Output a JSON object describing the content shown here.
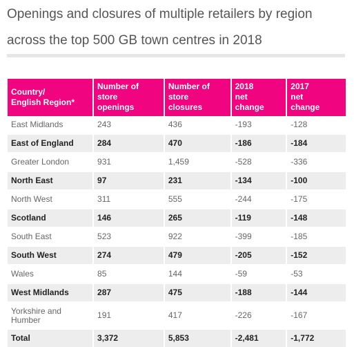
{
  "chart_data": {
    "type": "table",
    "title": "Openings and closures of multiple retailers by region across the top 500 GB town centres in 2018",
    "headers": [
      "Country/\n English Region*",
      "Number of\nstore\n openings",
      "Number of\n store\nclosures",
      "2018\n net\nchange",
      "2017\n net\nchange"
    ],
    "rows": [
      [
        "East Midlands",
        "243",
        "436",
        "-193",
        "-128"
      ],
      [
        "East of England",
        "284",
        "470",
        "-186",
        "-184"
      ],
      [
        "Greater London",
        "931",
        "1,459",
        "-528",
        "-336"
      ],
      [
        "North East",
        "97",
        "231",
        "-134",
        "-100"
      ],
      [
        "North West",
        "311",
        "555",
        "-244",
        "-175"
      ],
      [
        "Scotland",
        "146",
        "265",
        "-119",
        "-148"
      ],
      [
        "South East",
        "523",
        "922",
        "-399",
        "-185"
      ],
      [
        "South West",
        "274",
        "479",
        "-205",
        "-152"
      ],
      [
        "Wales",
        "85",
        "144",
        "-59",
        "-53"
      ],
      [
        "West Midlands",
        "287",
        "475",
        "-188",
        "-144"
      ],
      [
        "Yorkshire and\nHumber",
        "191",
        "417",
        "-226",
        "-167"
      ],
      [
        "Total",
        "3,372",
        "5,853",
        "-2,481",
        "-1,772"
      ]
    ]
  },
  "colors": {
    "header_bg": "#f0047f",
    "band_bg": "#ededed",
    "title_text": "#555555"
  }
}
